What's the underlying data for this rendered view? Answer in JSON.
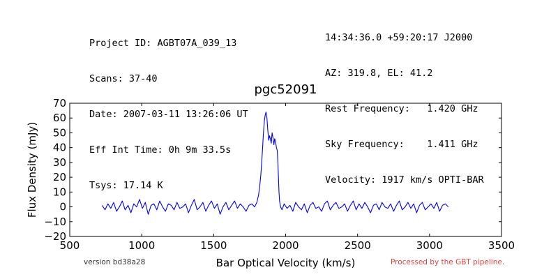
{
  "header": {
    "left_lines": [
      "Project ID: AGBT07A_039_13",
      "Scans: 37-40",
      "Date: 2007-03-11 13:26:06 UT",
      "Eff Int Time: 0h 9m 33.5s",
      "Tsys: 17.14 K"
    ],
    "right_lines": [
      "14:34:36.0 +59:20:17 J2000",
      "AZ: 319.8, EL: 41.2",
      "Rest Frequency:   1.420 GHz",
      "Sky Frequency:    1.411 GHz",
      "Velocity: 1917 km/s OPTI-BAR"
    ]
  },
  "footer": {
    "version": "version bd38a28",
    "pipeline": "Processed by the GBT pipeline."
  },
  "colors": {
    "line": "#0000ff",
    "pipeline_text": "#e8403a"
  },
  "chart_data": {
    "type": "line",
    "title": "pgc52091",
    "xlabel": "Bar Optical Velocity (km/s)",
    "ylabel": "Flux Density (mJy)",
    "xlim": [
      500,
      3500
    ],
    "ylim": [
      -20,
      70
    ],
    "xticks": [
      500,
      1000,
      1500,
      2000,
      2500,
      3000,
      3500
    ],
    "yticks": [
      -20,
      -10,
      0,
      10,
      20,
      30,
      40,
      50,
      60,
      70
    ],
    "grid": false,
    "series": [
      {
        "points": [
          [
            725,
            1
          ],
          [
            745,
            -2
          ],
          [
            765,
            2
          ],
          [
            785,
            -1
          ],
          [
            805,
            3
          ],
          [
            825,
            -3
          ],
          [
            845,
            0
          ],
          [
            865,
            4
          ],
          [
            885,
            -2
          ],
          [
            905,
            1
          ],
          [
            925,
            -4
          ],
          [
            945,
            2
          ],
          [
            965,
            0
          ],
          [
            985,
            5
          ],
          [
            1005,
            -1
          ],
          [
            1025,
            3
          ],
          [
            1045,
            -5
          ],
          [
            1065,
            1
          ],
          [
            1085,
            2
          ],
          [
            1105,
            -2
          ],
          [
            1125,
            4
          ],
          [
            1145,
            0
          ],
          [
            1165,
            -3
          ],
          [
            1185,
            2
          ],
          [
            1205,
            1
          ],
          [
            1225,
            -2
          ],
          [
            1245,
            3
          ],
          [
            1265,
            -1
          ],
          [
            1285,
            0
          ],
          [
            1305,
            2
          ],
          [
            1325,
            -4
          ],
          [
            1345,
            1
          ],
          [
            1365,
            5
          ],
          [
            1385,
            -2
          ],
          [
            1405,
            0
          ],
          [
            1425,
            3
          ],
          [
            1445,
            -3
          ],
          [
            1465,
            1
          ],
          [
            1485,
            4
          ],
          [
            1505,
            -1
          ],
          [
            1525,
            2
          ],
          [
            1545,
            -5
          ],
          [
            1565,
            0
          ],
          [
            1585,
            3
          ],
          [
            1605,
            -2
          ],
          [
            1625,
            1
          ],
          [
            1645,
            4
          ],
          [
            1665,
            -1
          ],
          [
            1685,
            2
          ],
          [
            1705,
            0
          ],
          [
            1725,
            -3
          ],
          [
            1745,
            1
          ],
          [
            1765,
            2
          ],
          [
            1785,
            0
          ],
          [
            1800,
            3
          ],
          [
            1812,
            8
          ],
          [
            1820,
            14
          ],
          [
            1828,
            22
          ],
          [
            1834,
            30
          ],
          [
            1840,
            40
          ],
          [
            1846,
            50
          ],
          [
            1852,
            58
          ],
          [
            1858,
            62
          ],
          [
            1864,
            64
          ],
          [
            1870,
            60
          ],
          [
            1876,
            52
          ],
          [
            1882,
            45
          ],
          [
            1888,
            48
          ],
          [
            1894,
            46
          ],
          [
            1900,
            43
          ],
          [
            1906,
            50
          ],
          [
            1912,
            47
          ],
          [
            1918,
            42
          ],
          [
            1924,
            46
          ],
          [
            1930,
            44
          ],
          [
            1936,
            40
          ],
          [
            1942,
            38
          ],
          [
            1946,
            30
          ],
          [
            1950,
            20
          ],
          [
            1954,
            10
          ],
          [
            1958,
            4
          ],
          [
            1965,
            0
          ],
          [
            1975,
            -2
          ],
          [
            1990,
            2
          ],
          [
            2010,
            -1
          ],
          [
            2030,
            1
          ],
          [
            2050,
            -3
          ],
          [
            2070,
            3
          ],
          [
            2090,
            0
          ],
          [
            2110,
            -2
          ],
          [
            2130,
            2
          ],
          [
            2150,
            -4
          ],
          [
            2170,
            1
          ],
          [
            2190,
            3
          ],
          [
            2210,
            -1
          ],
          [
            2230,
            0
          ],
          [
            2250,
            -3
          ],
          [
            2270,
            2
          ],
          [
            2290,
            4
          ],
          [
            2310,
            -2
          ],
          [
            2330,
            1
          ],
          [
            2350,
            3
          ],
          [
            2370,
            -1
          ],
          [
            2390,
            0
          ],
          [
            2410,
            2
          ],
          [
            2430,
            -3
          ],
          [
            2450,
            1
          ],
          [
            2470,
            4
          ],
          [
            2490,
            -2
          ],
          [
            2510,
            2
          ],
          [
            2530,
            -1
          ],
          [
            2550,
            3
          ],
          [
            2570,
            0
          ],
          [
            2590,
            -4
          ],
          [
            2610,
            1
          ],
          [
            2630,
            2
          ],
          [
            2650,
            -2
          ],
          [
            2670,
            3
          ],
          [
            2690,
            0
          ],
          [
            2710,
            -1
          ],
          [
            2730,
            2
          ],
          [
            2750,
            -3
          ],
          [
            2770,
            1
          ],
          [
            2790,
            4
          ],
          [
            2810,
            -2
          ],
          [
            2830,
            0
          ],
          [
            2850,
            3
          ],
          [
            2870,
            -1
          ],
          [
            2890,
            2
          ],
          [
            2910,
            -4
          ],
          [
            2930,
            1
          ],
          [
            2950,
            3
          ],
          [
            2970,
            -2
          ],
          [
            2990,
            0
          ],
          [
            3010,
            2
          ],
          [
            3030,
            -1
          ],
          [
            3050,
            3
          ],
          [
            3070,
            -3
          ],
          [
            3090,
            1
          ],
          [
            3110,
            2
          ],
          [
            3130,
            0
          ]
        ]
      }
    ]
  }
}
